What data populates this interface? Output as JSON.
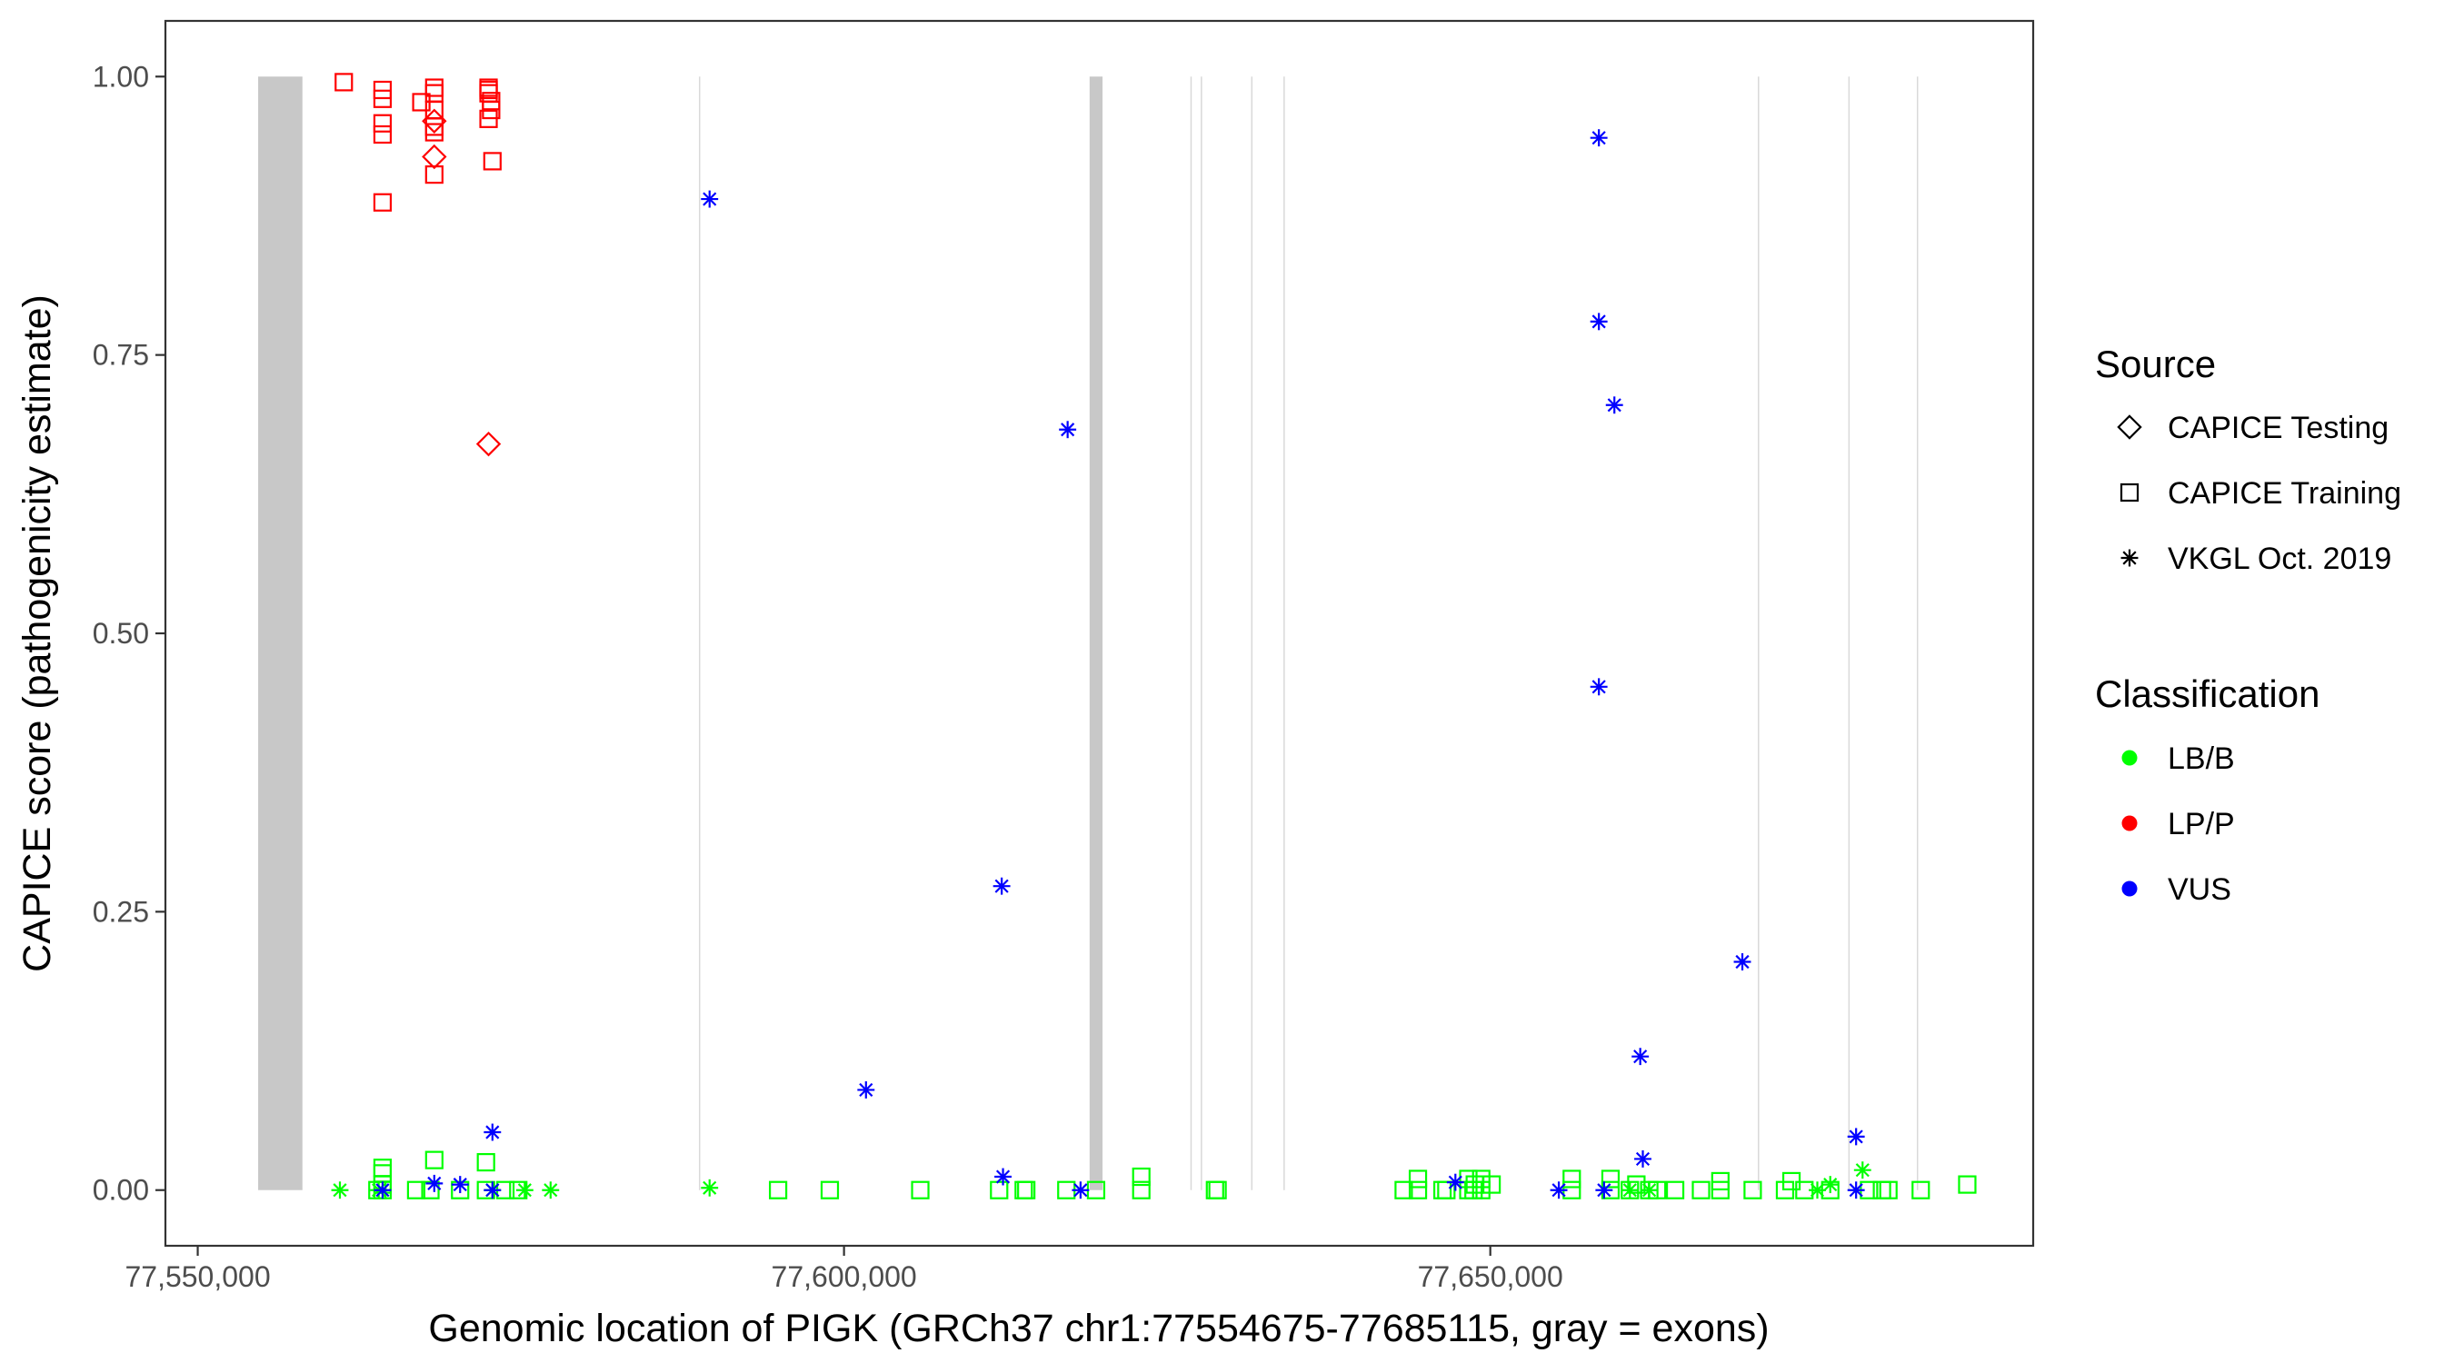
{
  "chart_data": {
    "type": "scatter",
    "title": "",
    "xlabel": "Genomic location of PIGK (GRCh37 chr1:77554675-77685115, gray = exons)",
    "ylabel": "CAPICE score (pathogenicity estimate)",
    "xlim": [
      77547500,
      77692000
    ],
    "ylim": [
      -0.05,
      1.05
    ],
    "x_ticks": [
      77550000,
      77600000,
      77650000
    ],
    "x_tick_labels": [
      "77,550,000",
      "77,600,000",
      "77,650,000"
    ],
    "y_ticks": [
      0,
      0.25,
      0.5,
      0.75,
      1
    ],
    "y_tick_labels": [
      "0.00",
      "0.25",
      "0.50",
      "0.75",
      "1.00"
    ],
    "grid": false,
    "legend_position": "right",
    "exons": [
      [
        77554675,
        77558100
      ],
      [
        77588800,
        77588850
      ],
      [
        77619000,
        77620000
      ],
      [
        77626800,
        77626900
      ],
      [
        77627600,
        77627700
      ],
      [
        77631500,
        77631600
      ],
      [
        77634000,
        77634100
      ],
      [
        77670700,
        77670800
      ],
      [
        77677700,
        77677800
      ],
      [
        77683000,
        77683100
      ]
    ],
    "legend": {
      "source_title": "Source",
      "source_items": [
        {
          "label": "CAPICE Testing",
          "shape": "diamond"
        },
        {
          "label": "CAPICE Training",
          "shape": "square"
        },
        {
          "label": "VKGL Oct. 2019",
          "shape": "asterisk"
        }
      ],
      "class_title": "Classification",
      "class_items": [
        {
          "label": "LB/B",
          "color": "#00ff00"
        },
        {
          "label": "LP/P",
          "color": "#ff0000"
        },
        {
          "label": "VUS",
          "color": "#0000ff"
        }
      ]
    },
    "series": [
      {
        "source": "CAPICE Training",
        "classification": "LP/P",
        "points": [
          [
            77561300,
            0.995
          ],
          [
            77564300,
            0.988
          ],
          [
            77564300,
            0.98
          ],
          [
            77564300,
            0.958
          ],
          [
            77564300,
            0.948
          ],
          [
            77564300,
            0.887
          ],
          [
            77567300,
            0.977
          ],
          [
            77568300,
            0.99
          ],
          [
            77568300,
            0.985
          ],
          [
            77568300,
            0.97
          ],
          [
            77568300,
            0.955
          ],
          [
            77568300,
            0.95
          ],
          [
            77568300,
            0.912
          ],
          [
            77572500,
            0.99
          ],
          [
            77572500,
            0.988
          ],
          [
            77572500,
            0.985
          ],
          [
            77572700,
            0.978
          ],
          [
            77572700,
            0.97
          ],
          [
            77572500,
            0.962
          ],
          [
            77572800,
            0.924
          ]
        ]
      },
      {
        "source": "CAPICE Testing",
        "classification": "LP/P",
        "points": [
          [
            77568300,
            0.96
          ],
          [
            77568300,
            0.928
          ],
          [
            77572500,
            0.67
          ]
        ]
      },
      {
        "source": "CAPICE Training",
        "classification": "LB/B",
        "points": [
          [
            77564300,
            0.02
          ],
          [
            77564300,
            0.015
          ],
          [
            77564300,
            0.005
          ],
          [
            77564300,
            0.0
          ],
          [
            77563900,
            0.0
          ],
          [
            77566900,
            0.0
          ],
          [
            77568000,
            0.0
          ],
          [
            77568300,
            0.027
          ],
          [
            77570300,
            0.0
          ],
          [
            77572300,
            0.025
          ],
          [
            77572300,
            0.0
          ],
          [
            77573800,
            0.0
          ],
          [
            77574800,
            0.0
          ],
          [
            77594900,
            0.0
          ],
          [
            77598900,
            0.0
          ],
          [
            77605900,
            0.0
          ],
          [
            77612000,
            0.0
          ],
          [
            77613900,
            0.0
          ],
          [
            77614100,
            0.0
          ],
          [
            77617200,
            0.0
          ],
          [
            77619500,
            0.0
          ],
          [
            77623000,
            0.012
          ],
          [
            77623000,
            0.0
          ],
          [
            77628700,
            0.0
          ],
          [
            77628900,
            0.0
          ],
          [
            77643300,
            0.0
          ],
          [
            77644400,
            0.01
          ],
          [
            77644400,
            0.0
          ],
          [
            77646300,
            0.0
          ],
          [
            77646600,
            0.0
          ],
          [
            77648300,
            0.01
          ],
          [
            77648300,
            0.0
          ],
          [
            77648700,
            0.0
          ],
          [
            77648800,
            0.005
          ],
          [
            77649300,
            0.01
          ],
          [
            77649300,
            0.0
          ],
          [
            77650100,
            0.005
          ],
          [
            77656300,
            0.01
          ],
          [
            77656300,
            0.0
          ],
          [
            77659300,
            0.0
          ],
          [
            77659300,
            0.01
          ],
          [
            77660800,
            0.0
          ],
          [
            77661300,
            0.005
          ],
          [
            77662300,
            0.0
          ],
          [
            77662900,
            0.0
          ],
          [
            77664300,
            0.0
          ],
          [
            77666300,
            0.0
          ],
          [
            77667800,
            0.0
          ],
          [
            77667800,
            0.008
          ],
          [
            77670300,
            0.0
          ],
          [
            77672800,
            0.0
          ],
          [
            77673300,
            0.008
          ],
          [
            77674300,
            0.0
          ],
          [
            77676300,
            0.0
          ],
          [
            77679300,
            0.0
          ],
          [
            77680300,
            0.0
          ],
          [
            77680800,
            0.0
          ],
          [
            77683300,
            0.0
          ],
          [
            77686900,
            0.005
          ]
        ]
      },
      {
        "source": "VKGL Oct. 2019",
        "classification": "LB/B",
        "points": [
          [
            77561000,
            0.0
          ],
          [
            77564000,
            0.0
          ],
          [
            77572800,
            0.0
          ],
          [
            77575300,
            0.0
          ],
          [
            77577300,
            0.0
          ],
          [
            77589600,
            0.002
          ],
          [
            77660800,
            0.0
          ],
          [
            77662300,
            0.0
          ],
          [
            77675300,
            0.0
          ],
          [
            77676300,
            0.005
          ],
          [
            77678800,
            0.018
          ]
        ]
      },
      {
        "source": "VKGL Oct. 2019",
        "classification": "VUS",
        "points": [
          [
            77564300,
            0.0
          ],
          [
            77568300,
            0.006
          ],
          [
            77570300,
            0.005
          ],
          [
            77572800,
            0.052
          ],
          [
            77572800,
            0.0
          ],
          [
            77589600,
            0.89
          ],
          [
            77601700,
            0.09
          ],
          [
            77612200,
            0.273
          ],
          [
            77612300,
            0.012
          ],
          [
            77617300,
            0.683
          ],
          [
            77618300,
            0.0
          ],
          [
            77647300,
            0.007
          ],
          [
            77655300,
            0.0
          ],
          [
            77658400,
            0.945
          ],
          [
            77658400,
            0.78
          ],
          [
            77658400,
            0.452
          ],
          [
            77658800,
            0.0
          ],
          [
            77659600,
            0.705
          ],
          [
            77661600,
            0.12
          ],
          [
            77661800,
            0.028
          ],
          [
            77669500,
            0.205
          ],
          [
            77678300,
            0.048
          ],
          [
            77678300,
            0.0
          ]
        ]
      }
    ]
  }
}
